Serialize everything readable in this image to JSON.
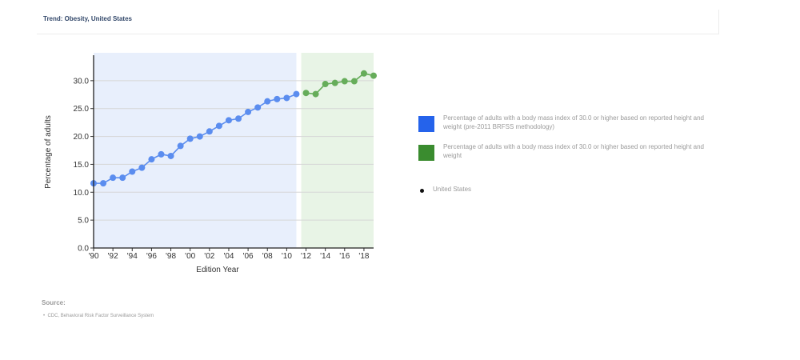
{
  "header": {
    "title": "Trend: Obesity, United States"
  },
  "legend": {
    "items": [
      {
        "label": "Percentage of adults with a body mass index of 30.0 or higher based on reported height and weight (pre-2011 BRFSS methodology)",
        "color": "#2563eb"
      },
      {
        "label": "Percentage of adults with a body mass index of 30.0 or higher based on reported height and weight",
        "color": "#3a8c2f"
      }
    ],
    "location": "United States"
  },
  "source": {
    "title": "Source:",
    "items": [
      "CDC, Behavioral Risk Factor Surveillance System"
    ]
  },
  "chart_data": {
    "type": "line",
    "xlabel": "Edition Year",
    "ylabel": "Percentage of adults",
    "ylim": [
      0,
      35
    ],
    "yticks": [
      "0.0",
      "5.0",
      "10.0",
      "15.0",
      "20.0",
      "25.0",
      "30.0"
    ],
    "xlim": [
      1990,
      2019
    ],
    "xticks": [
      {
        "year": 1990,
        "label": "'90"
      },
      {
        "year": 1992,
        "label": "'92"
      },
      {
        "year": 1994,
        "label": "'94"
      },
      {
        "year": 1996,
        "label": "'96"
      },
      {
        "year": 1998,
        "label": "'98"
      },
      {
        "year": 2000,
        "label": "'00"
      },
      {
        "year": 2002,
        "label": "'02"
      },
      {
        "year": 2004,
        "label": "'04"
      },
      {
        "year": 2006,
        "label": "'06"
      },
      {
        "year": 2008,
        "label": "'08"
      },
      {
        "year": 2010,
        "label": "'10"
      },
      {
        "year": 2012,
        "label": "'12"
      },
      {
        "year": 2014,
        "label": "'14"
      },
      {
        "year": 2016,
        "label": "'16"
      },
      {
        "year": 2018,
        "label": "'18"
      }
    ],
    "grid": true,
    "legend_position": "right",
    "series": [
      {
        "color": "#5b8def",
        "fill": "#e8effc",
        "x": [
          1990,
          1991,
          1992,
          1993,
          1994,
          1995,
          1996,
          1997,
          1998,
          1999,
          2000,
          2001,
          2002,
          2003,
          2004,
          2005,
          2006,
          2007,
          2008,
          2009,
          2010,
          2011
        ],
        "values": [
          11.6,
          11.6,
          12.6,
          12.6,
          13.7,
          14.4,
          15.9,
          16.8,
          16.5,
          18.3,
          19.6,
          20.0,
          20.9,
          21.9,
          22.9,
          23.2,
          24.4,
          25.2,
          26.3,
          26.7,
          26.9,
          27.6
        ]
      },
      {
        "color": "#66ad5a",
        "fill": "#e8f4e6",
        "x": [
          2012,
          2013,
          2014,
          2015,
          2016,
          2017,
          2018,
          2019
        ],
        "values": [
          27.8,
          27.6,
          29.4,
          29.6,
          29.9,
          29.9,
          31.3,
          30.9
        ]
      }
    ]
  }
}
